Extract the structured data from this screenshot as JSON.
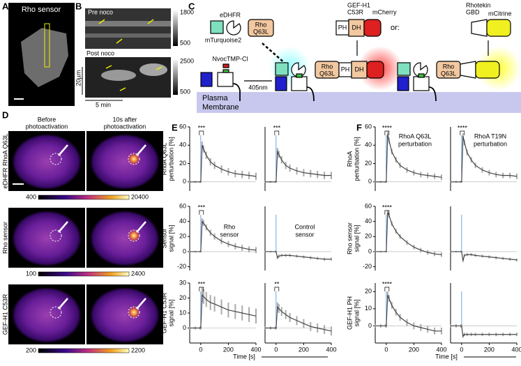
{
  "letters": [
    "A",
    "B",
    "C",
    "D",
    "E",
    "F"
  ],
  "panel_a": {
    "title": "Rho sensor"
  },
  "panel_b": {
    "pre": "Pre noco",
    "post": "Post noco",
    "scale_y": "20µm",
    "scale_x": "5 min",
    "cbar_pre": [
      1800,
      500
    ],
    "cbar_post": [
      2500,
      500
    ]
  },
  "panel_c": {
    "edhfr": "eDHFR",
    "rho": "Rho",
    "q63l": "Q63L",
    "mturquoise": "mTurquoise2",
    "nvoc": "NvocTMP-Cl",
    "light": "405nm",
    "gef": [
      "GEF-H1",
      "C53R"
    ],
    "ph": "PH",
    "dh": "DH",
    "mcherry": "mCherry",
    "or": "or:",
    "rhotekin": [
      "Rhotekin",
      "GBD"
    ],
    "mcitrine": "mCitrine",
    "membrane": [
      "Plasma",
      "Membrane"
    ]
  },
  "panel_d": {
    "col1": [
      "Before",
      "photoactivation"
    ],
    "col2": [
      "10s after",
      "photoactivation"
    ],
    "rows": [
      "eDHFR RhoA Q63L",
      "Rho sensor",
      "GEF-H1 C53R"
    ],
    "cbars": [
      [
        400,
        20400
      ],
      [
        100,
        2400
      ],
      [
        200,
        2200
      ]
    ]
  },
  "time_label": "Time [s]",
  "chart_data": [
    {
      "type": "line",
      "ylabel": [
        "RhoA Q63L",
        "perturbation [%]"
      ],
      "annotation": "***",
      "xlim": [
        -80,
        400
      ],
      "ylim": [
        -10,
        60
      ],
      "yticks": [
        0,
        20,
        40,
        60
      ],
      "x": [
        -80,
        -40,
        -5,
        0,
        10,
        20,
        40,
        70,
        100,
        150,
        200,
        250,
        300,
        350,
        400
      ],
      "series": [
        {
          "color": "#444444",
          "values": [
            0,
            0,
            0,
            0,
            40,
            36,
            29,
            22,
            18,
            14,
            11,
            9,
            8,
            7,
            6
          ],
          "errors": [
            1,
            1,
            1,
            1,
            4,
            4,
            4,
            4,
            4,
            4,
            4,
            4,
            4,
            4,
            4
          ]
        }
      ]
    },
    {
      "type": "line",
      "annotation": "***",
      "xlim": [
        -80,
        400
      ],
      "ylim": [
        -10,
        60
      ],
      "x": [
        -80,
        -40,
        -5,
        0,
        10,
        20,
        40,
        70,
        100,
        150,
        200,
        250,
        300,
        350,
        400
      ],
      "series": [
        {
          "color": "#444444",
          "values": [
            0,
            0,
            0,
            0,
            33,
            30,
            24,
            18,
            15,
            12,
            10,
            9,
            8,
            7,
            7
          ],
          "errors": [
            1,
            1,
            1,
            1,
            4,
            4,
            4,
            4,
            4,
            4,
            4,
            4,
            4,
            4,
            4
          ]
        }
      ]
    },
    {
      "type": "line",
      "ylabel": [
        "Sensor",
        "signal [%]"
      ],
      "annotation": "***",
      "label": [
        "Rho",
        "sensor"
      ],
      "xlim": [
        -80,
        400
      ],
      "ylim": [
        -25,
        60
      ],
      "yticks": [
        -20,
        0,
        20,
        40,
        60
      ],
      "x": [
        -80,
        -40,
        -5,
        0,
        10,
        20,
        40,
        70,
        100,
        150,
        200,
        250,
        300,
        350,
        400
      ],
      "series": [
        {
          "color": "#444444",
          "values": [
            0,
            0,
            0,
            0,
            40,
            38,
            32,
            25,
            20,
            14,
            10,
            7,
            5,
            3,
            2
          ],
          "errors": [
            1,
            1,
            1,
            1,
            4,
            4,
            4,
            4,
            4,
            4,
            4,
            4,
            4,
            4,
            4
          ]
        }
      ]
    },
    {
      "type": "line",
      "label": [
        "Control",
        "sensor"
      ],
      "xlim": [
        -80,
        400
      ],
      "ylim": [
        -25,
        60
      ],
      "x": [
        -80,
        -40,
        -5,
        0,
        10,
        20,
        40,
        70,
        100,
        150,
        200,
        250,
        300,
        350,
        400
      ],
      "series": [
        {
          "color": "#444444",
          "values": [
            0,
            0,
            0,
            0,
            -8,
            -6,
            -5,
            -5,
            -5,
            -6,
            -7,
            -8,
            -9,
            -10,
            -10
          ],
          "errors": [
            1,
            1,
            1,
            1,
            2,
            2,
            2,
            2,
            2,
            2,
            2,
            2,
            2,
            2,
            2
          ]
        }
      ]
    },
    {
      "type": "line",
      "ylabel": [
        "GEF-H1 C53R",
        "signal [%]"
      ],
      "annotation": "***",
      "xlim": [
        -80,
        400
      ],
      "ylim": [
        -10,
        30
      ],
      "yticks": [
        0,
        10,
        20,
        30
      ],
      "xticks": [
        0,
        200,
        400
      ],
      "x": [
        -80,
        -40,
        -5,
        0,
        10,
        20,
        40,
        70,
        100,
        150,
        200,
        250,
        300,
        350,
        400
      ],
      "series": [
        {
          "color": "#444444",
          "values": [
            0,
            0,
            0,
            0,
            22,
            21,
            19,
            17,
            16,
            14,
            12,
            11,
            10,
            9,
            8
          ],
          "errors": [
            1,
            1,
            1,
            1,
            5,
            5,
            5,
            5,
            5,
            5,
            5,
            5,
            5,
            5,
            5
          ]
        }
      ]
    },
    {
      "type": "line",
      "annotation": "**",
      "xlim": [
        -80,
        400
      ],
      "ylim": [
        -10,
        30
      ],
      "xticks": [
        0,
        200,
        400
      ],
      "x": [
        -80,
        -40,
        -5,
        0,
        10,
        20,
        40,
        70,
        100,
        150,
        200,
        250,
        300,
        350,
        400
      ],
      "series": [
        {
          "color": "#444444",
          "values": [
            0,
            0,
            0,
            0,
            14,
            13,
            11,
            9,
            7,
            5,
            3,
            1,
            0,
            -1,
            -2
          ],
          "errors": [
            1,
            1,
            1,
            1,
            3,
            3,
            3,
            3,
            3,
            3,
            3,
            3,
            3,
            3,
            3
          ]
        }
      ]
    },
    {
      "type": "line",
      "ylabel": [
        "RhoA",
        "perturbation [%]"
      ],
      "annotation": "****",
      "label": [
        "RhoA Q63L",
        "perturbation"
      ],
      "xlim": [
        -80,
        400
      ],
      "ylim": [
        -10,
        60
      ],
      "yticks": [
        0,
        20,
        40,
        60
      ],
      "x": [
        -80,
        -40,
        -5,
        0,
        10,
        20,
        40,
        70,
        100,
        150,
        200,
        250,
        300,
        350,
        400
      ],
      "series": [
        {
          "color": "#444444",
          "values": [
            0,
            0,
            0,
            0,
            52,
            45,
            33,
            24,
            18,
            13,
            10,
            8,
            7,
            6,
            5
          ],
          "errors": [
            1,
            1,
            1,
            1,
            3,
            3,
            3,
            3,
            3,
            3,
            3,
            3,
            3,
            3,
            3
          ]
        }
      ]
    },
    {
      "type": "line",
      "annotation": "****",
      "label": [
        "RhoA T19N",
        "perturbation"
      ],
      "xlim": [
        -80,
        400
      ],
      "ylim": [
        -10,
        60
      ],
      "x": [
        -80,
        -40,
        -5,
        0,
        10,
        20,
        40,
        70,
        100,
        150,
        200,
        250,
        300,
        350,
        400
      ],
      "series": [
        {
          "color": "#444444",
          "values": [
            0,
            0,
            0,
            0,
            50,
            43,
            32,
            24,
            18,
            13,
            10,
            8,
            7,
            7,
            6
          ],
          "errors": [
            1,
            1,
            1,
            1,
            3,
            3,
            3,
            3,
            3,
            3,
            3,
            3,
            3,
            3,
            3
          ]
        }
      ]
    },
    {
      "type": "line",
      "ylabel": [
        "Rho sensor",
        "signal [%]"
      ],
      "annotation": "****",
      "xlim": [
        -80,
        400
      ],
      "ylim": [
        -25,
        60
      ],
      "yticks": [
        -20,
        0,
        20,
        40,
        60
      ],
      "x": [
        -80,
        -40,
        -5,
        0,
        10,
        20,
        40,
        70,
        100,
        150,
        200,
        250,
        300,
        350,
        400
      ],
      "series": [
        {
          "color": "#444444",
          "values": [
            0,
            0,
            0,
            0,
            52,
            48,
            37,
            27,
            20,
            12,
            6,
            2,
            -1,
            -3,
            -4
          ],
          "errors": [
            1,
            1,
            1,
            1,
            3,
            3,
            3,
            3,
            3,
            3,
            3,
            3,
            3,
            3,
            3
          ]
        }
      ]
    },
    {
      "type": "line",
      "xlim": [
        -80,
        400
      ],
      "ylim": [
        -25,
        60
      ],
      "x": [
        -80,
        -40,
        -5,
        0,
        10,
        20,
        40,
        70,
        100,
        150,
        200,
        250,
        300,
        350,
        400
      ],
      "series": [
        {
          "color": "#444444",
          "values": [
            0,
            0,
            0,
            0,
            -12,
            -5,
            -4,
            -4,
            -5,
            -6,
            -7,
            -8,
            -9,
            -10,
            -11
          ],
          "errors": [
            1,
            1,
            1,
            1,
            2,
            2,
            2,
            2,
            2,
            2,
            2,
            2,
            2,
            2,
            2
          ]
        }
      ]
    },
    {
      "type": "line",
      "ylabel": [
        "GEF-H1 PH",
        "signal [%]"
      ],
      "annotation": "****",
      "xlim": [
        -80,
        400
      ],
      "ylim": [
        -10,
        25
      ],
      "yticks": [
        0,
        10,
        20
      ],
      "xticks": [
        0,
        200,
        400
      ],
      "x": [
        -80,
        -40,
        -5,
        0,
        10,
        20,
        40,
        70,
        100,
        150,
        200,
        250,
        300,
        350,
        400
      ],
      "series": [
        {
          "color": "#444444",
          "values": [
            0,
            0,
            0,
            0,
            18,
            16,
            12,
            8,
            5,
            2,
            0,
            -1,
            -2,
            -3,
            -3
          ],
          "errors": [
            1,
            1,
            1,
            1,
            2,
            2,
            2,
            2,
            2,
            2,
            2,
            2,
            2,
            2,
            2
          ]
        }
      ]
    },
    {
      "type": "line",
      "xlim": [
        -80,
        400
      ],
      "ylim": [
        -10,
        25
      ],
      "xticks": [
        0,
        200,
        400
      ],
      "x": [
        -80,
        -40,
        -5,
        0,
        10,
        20,
        40,
        70,
        100,
        150,
        200,
        250,
        300,
        350,
        400
      ],
      "series": [
        {
          "color": "#444444",
          "values": [
            0,
            0,
            0,
            0,
            -6,
            -5,
            -5,
            -5,
            -5,
            -5,
            -5,
            -5,
            -5,
            -5,
            -5
          ],
          "errors": [
            1,
            1,
            1,
            1,
            1,
            1,
            1,
            1,
            1,
            1,
            1,
            1,
            1,
            1,
            1
          ]
        }
      ]
    }
  ]
}
